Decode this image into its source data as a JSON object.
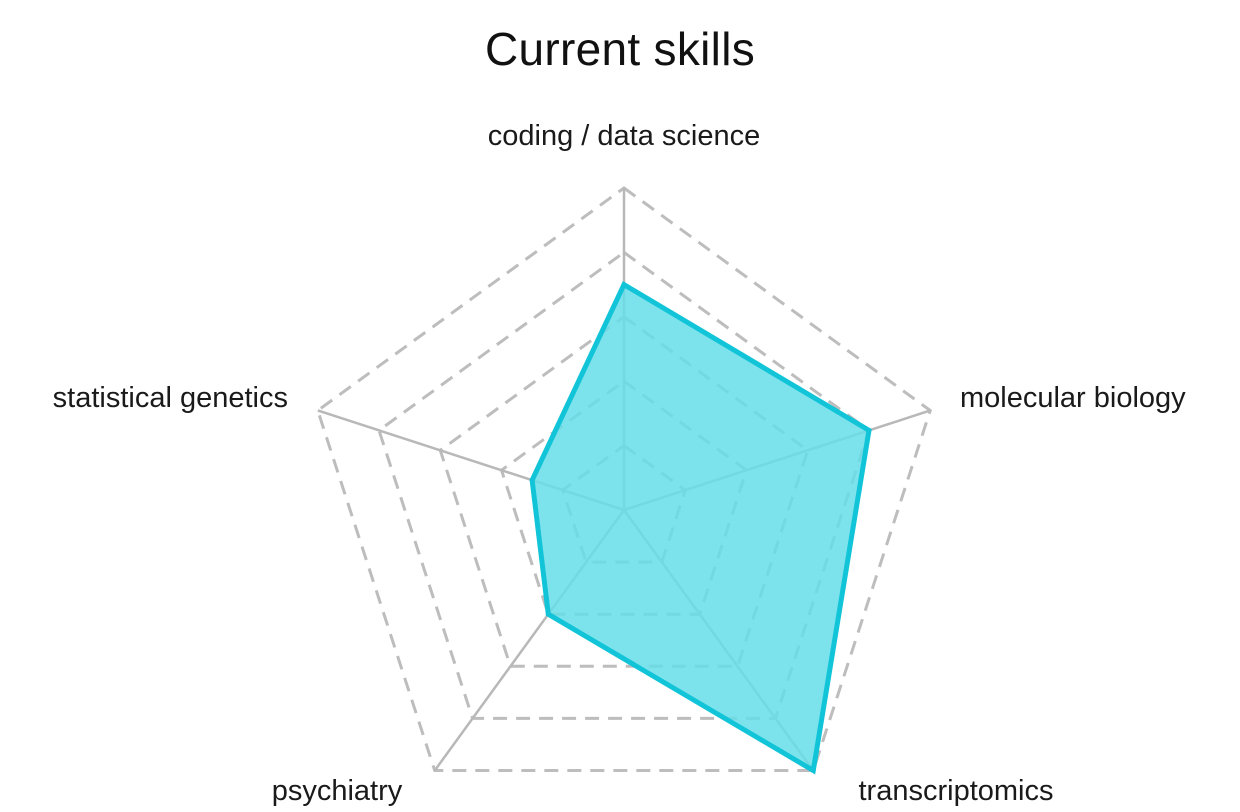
{
  "chart_data": {
    "type": "radar",
    "title": "Current skills",
    "axes": [
      "coding / data science",
      "molecular biology",
      "transcriptomics",
      "psychiatry",
      "statistical genetics"
    ],
    "levels": 5,
    "range": [
      0,
      5
    ],
    "grid": true,
    "grid_style": "dashed",
    "series": [
      {
        "values": [
          3.5,
          4,
          5,
          2,
          1.5
        ]
      }
    ],
    "colors": {
      "fill": "#65dde8",
      "stroke": "#12c4d8",
      "grid": "#bdbdbd",
      "axis": "#b8b8b8"
    }
  }
}
